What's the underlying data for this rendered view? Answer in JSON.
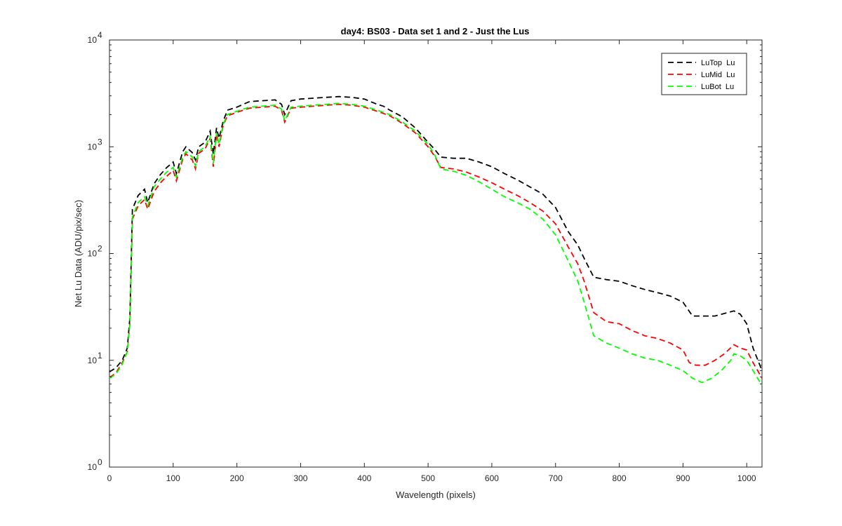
{
  "chart_data": {
    "type": "line",
    "title": "day4: BS03 - Data set 1 and 2 - Just the Lus",
    "xlabel": "Wavelength (pixels)",
    "ylabel": "Net Lu Data (ADU/pix/sec)",
    "xlim": [
      0,
      1024
    ],
    "ylim": [
      1,
      10000
    ],
    "yscale": "log",
    "x_ticks": [
      0,
      100,
      200,
      300,
      400,
      500,
      600,
      700,
      800,
      900,
      1000
    ],
    "y_ticks": [
      {
        "value": 1,
        "base": "10",
        "exp": "0"
      },
      {
        "value": 10,
        "base": "10",
        "exp": "1"
      },
      {
        "value": 100,
        "base": "10",
        "exp": "2"
      },
      {
        "value": 1000,
        "base": "10",
        "exp": "3"
      },
      {
        "value": 10000,
        "base": "10",
        "exp": "4"
      }
    ],
    "grid": false,
    "legend_position": "top-right",
    "line_style": "dashed",
    "series": [
      {
        "name": "LuTop  Lu",
        "color": "#000000",
        "points": [
          [
            0,
            7.8
          ],
          [
            10,
            8.5
          ],
          [
            20,
            10
          ],
          [
            28,
            13
          ],
          [
            32,
            25
          ],
          [
            36,
            260
          ],
          [
            45,
            350
          ],
          [
            55,
            400
          ],
          [
            60,
            300
          ],
          [
            70,
            450
          ],
          [
            80,
            550
          ],
          [
            90,
            640
          ],
          [
            100,
            720
          ],
          [
            105,
            560
          ],
          [
            115,
            900
          ],
          [
            120,
            1000
          ],
          [
            130,
            880
          ],
          [
            135,
            750
          ],
          [
            140,
            1000
          ],
          [
            150,
            1100
          ],
          [
            158,
            1400
          ],
          [
            163,
            850
          ],
          [
            168,
            1500
          ],
          [
            172,
            1200
          ],
          [
            178,
            1700
          ],
          [
            185,
            2200
          ],
          [
            200,
            2350
          ],
          [
            210,
            2500
          ],
          [
            220,
            2650
          ],
          [
            240,
            2700
          ],
          [
            260,
            2750
          ],
          [
            270,
            2500
          ],
          [
            275,
            2000
          ],
          [
            285,
            2700
          ],
          [
            300,
            2800
          ],
          [
            320,
            2850
          ],
          [
            340,
            2900
          ],
          [
            360,
            2950
          ],
          [
            380,
            2900
          ],
          [
            400,
            2800
          ],
          [
            420,
            2500
          ],
          [
            430,
            2400
          ],
          [
            440,
            2200
          ],
          [
            460,
            1900
          ],
          [
            480,
            1500
          ],
          [
            500,
            1100
          ],
          [
            510,
            950
          ],
          [
            520,
            800
          ],
          [
            540,
            780
          ],
          [
            560,
            780
          ],
          [
            580,
            720
          ],
          [
            600,
            650
          ],
          [
            620,
            560
          ],
          [
            640,
            490
          ],
          [
            660,
            420
          ],
          [
            680,
            360
          ],
          [
            700,
            270
          ],
          [
            720,
            160
          ],
          [
            735,
            120
          ],
          [
            745,
            90
          ],
          [
            760,
            60
          ],
          [
            780,
            57
          ],
          [
            800,
            55
          ],
          [
            820,
            50
          ],
          [
            840,
            46
          ],
          [
            860,
            43
          ],
          [
            880,
            40
          ],
          [
            900,
            35
          ],
          [
            915,
            26
          ],
          [
            930,
            26
          ],
          [
            950,
            26
          ],
          [
            970,
            28
          ],
          [
            980,
            29
          ],
          [
            990,
            27
          ],
          [
            1000,
            22
          ],
          [
            1010,
            13
          ],
          [
            1024,
            8
          ]
        ]
      },
      {
        "name": "LuMid  Lu",
        "color": "#ff0000",
        "points": [
          [
            0,
            6.9
          ],
          [
            10,
            7.6
          ],
          [
            20,
            9.5
          ],
          [
            28,
            12
          ],
          [
            32,
            22
          ],
          [
            36,
            210
          ],
          [
            45,
            280
          ],
          [
            55,
            320
          ],
          [
            60,
            260
          ],
          [
            70,
            380
          ],
          [
            80,
            460
          ],
          [
            90,
            530
          ],
          [
            100,
            600
          ],
          [
            105,
            480
          ],
          [
            115,
            760
          ],
          [
            120,
            860
          ],
          [
            130,
            750
          ],
          [
            135,
            620
          ],
          [
            140,
            870
          ],
          [
            150,
            950
          ],
          [
            158,
            1200
          ],
          [
            163,
            650
          ],
          [
            168,
            1300
          ],
          [
            172,
            1000
          ],
          [
            178,
            1550
          ],
          [
            185,
            1950
          ],
          [
            200,
            2100
          ],
          [
            210,
            2200
          ],
          [
            220,
            2300
          ],
          [
            240,
            2350
          ],
          [
            260,
            2400
          ],
          [
            270,
            2200
          ],
          [
            275,
            1700
          ],
          [
            285,
            2300
          ],
          [
            300,
            2350
          ],
          [
            320,
            2400
          ],
          [
            340,
            2450
          ],
          [
            360,
            2500
          ],
          [
            380,
            2450
          ],
          [
            400,
            2350
          ],
          [
            420,
            2150
          ],
          [
            430,
            2050
          ],
          [
            440,
            1950
          ],
          [
            460,
            1650
          ],
          [
            480,
            1350
          ],
          [
            500,
            1000
          ],
          [
            510,
            820
          ],
          [
            520,
            640
          ],
          [
            540,
            620
          ],
          [
            560,
            580
          ],
          [
            580,
            520
          ],
          [
            600,
            460
          ],
          [
            620,
            400
          ],
          [
            640,
            350
          ],
          [
            660,
            300
          ],
          [
            680,
            250
          ],
          [
            700,
            190
          ],
          [
            720,
            115
          ],
          [
            735,
            80
          ],
          [
            745,
            55
          ],
          [
            760,
            28
          ],
          [
            780,
            23
          ],
          [
            800,
            22
          ],
          [
            820,
            19
          ],
          [
            840,
            17
          ],
          [
            860,
            16
          ],
          [
            880,
            14.5
          ],
          [
            900,
            12.5
          ],
          [
            910,
            9.5
          ],
          [
            920,
            9
          ],
          [
            935,
            9
          ],
          [
            950,
            10
          ],
          [
            965,
            11.5
          ],
          [
            980,
            14
          ],
          [
            990,
            13
          ],
          [
            1000,
            12.5
          ],
          [
            1010,
            9.5
          ],
          [
            1024,
            6.8
          ]
        ]
      },
      {
        "name": "LuBot  Lu",
        "color": "#00ff00",
        "points": [
          [
            0,
            6.8
          ],
          [
            10,
            7.4
          ],
          [
            20,
            9.2
          ],
          [
            28,
            12
          ],
          [
            32,
            22
          ],
          [
            36,
            220
          ],
          [
            45,
            300
          ],
          [
            55,
            340
          ],
          [
            60,
            280
          ],
          [
            70,
            420
          ],
          [
            80,
            500
          ],
          [
            90,
            580
          ],
          [
            100,
            640
          ],
          [
            105,
            520
          ],
          [
            115,
            800
          ],
          [
            120,
            900
          ],
          [
            130,
            800
          ],
          [
            135,
            660
          ],
          [
            140,
            900
          ],
          [
            150,
            1000
          ],
          [
            158,
            1250
          ],
          [
            163,
            700
          ],
          [
            168,
            1350
          ],
          [
            172,
            1050
          ],
          [
            178,
            1600
          ],
          [
            185,
            2000
          ],
          [
            200,
            2150
          ],
          [
            210,
            2250
          ],
          [
            220,
            2350
          ],
          [
            240,
            2400
          ],
          [
            260,
            2450
          ],
          [
            270,
            2250
          ],
          [
            275,
            1750
          ],
          [
            285,
            2350
          ],
          [
            300,
            2400
          ],
          [
            320,
            2450
          ],
          [
            340,
            2500
          ],
          [
            360,
            2550
          ],
          [
            380,
            2500
          ],
          [
            400,
            2400
          ],
          [
            420,
            2200
          ],
          [
            430,
            2100
          ],
          [
            440,
            2000
          ],
          [
            460,
            1700
          ],
          [
            480,
            1400
          ],
          [
            500,
            1050
          ],
          [
            510,
            850
          ],
          [
            520,
            620
          ],
          [
            540,
            590
          ],
          [
            560,
            540
          ],
          [
            580,
            470
          ],
          [
            600,
            400
          ],
          [
            620,
            340
          ],
          [
            640,
            300
          ],
          [
            660,
            260
          ],
          [
            680,
            210
          ],
          [
            700,
            150
          ],
          [
            720,
            85
          ],
          [
            735,
            55
          ],
          [
            745,
            35
          ],
          [
            760,
            17
          ],
          [
            780,
            14.5
          ],
          [
            800,
            13
          ],
          [
            820,
            11.5
          ],
          [
            840,
            10.5
          ],
          [
            860,
            10
          ],
          [
            880,
            9
          ],
          [
            900,
            8
          ],
          [
            915,
            6.8
          ],
          [
            930,
            6.2
          ],
          [
            945,
            6.8
          ],
          [
            960,
            8
          ],
          [
            975,
            10
          ],
          [
            980,
            11.5
          ],
          [
            990,
            11
          ],
          [
            1000,
            10
          ],
          [
            1010,
            8
          ],
          [
            1024,
            5.8
          ]
        ]
      }
    ]
  }
}
